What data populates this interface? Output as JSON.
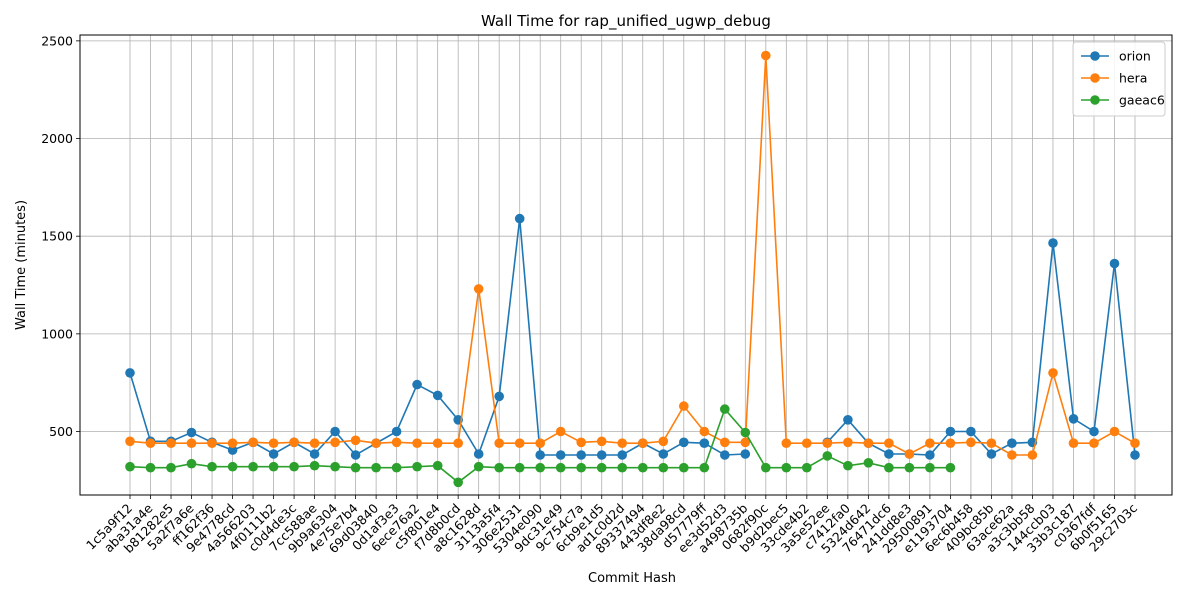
{
  "chart_data": {
    "type": "line",
    "title": "Wall Time for rap_unified_ugwp_debug",
    "xlabel": "Commit Hash",
    "ylabel": "Wall Time (minutes)",
    "ylim": [
      175,
      2530
    ],
    "yticks": [
      500,
      1000,
      1500,
      2000,
      2500
    ],
    "grid": true,
    "legend_position": "top-right",
    "categories": [
      "1c5a9f12",
      "aba31a4e",
      "b81282e5",
      "5a2f7a6e",
      "ff162f36",
      "9e4778cd",
      "4a566203",
      "4f0111b2",
      "c0d4de3c",
      "7cc588ae",
      "9b9a6304",
      "4e75e7b4",
      "69d03840",
      "0d1af3e3",
      "6ece76a2",
      "c5f801e4",
      "f7d8b0cd",
      "a8c1628d",
      "3113a5f4",
      "306e2531",
      "5304e090",
      "9dc31e49",
      "9c754c7a",
      "6cb9e1d5",
      "ad1c0d2d",
      "89337494",
      "443df8e2",
      "38da98cd",
      "d57779ff",
      "ee3d52d3",
      "a498735b",
      "0682f90c",
      "b9d2bec5",
      "33cde4b2",
      "3a5e52ee",
      "c7412fa0",
      "5324d642",
      "76471dc6",
      "241dd8e3",
      "29500891",
      "e1193704",
      "6ec6b458",
      "409bc85b",
      "63ace62a",
      "a3c3bb58",
      "144ccb03",
      "33b3c187",
      "c0367fdf",
      "6b0f5165",
      "29c2703c"
    ],
    "series": [
      {
        "name": "orion",
        "color": "#1f77b4",
        "values": [
          800,
          450,
          450,
          495,
          445,
          405,
          445,
          385,
          445,
          385,
          500,
          380,
          440,
          500,
          740,
          685,
          560,
          385,
          680,
          1590,
          380,
          380,
          380,
          380,
          380,
          440,
          385,
          445,
          440,
          380,
          385,
          null,
          null,
          null,
          445,
          560,
          440,
          385,
          385,
          380,
          500,
          500,
          385,
          440,
          445,
          1465,
          565,
          500,
          1360,
          380
        ]
      },
      {
        "name": "hera",
        "color": "#ff7f0e",
        "values": [
          450,
          440,
          440,
          440,
          440,
          440,
          445,
          440,
          445,
          440,
          445,
          455,
          440,
          445,
          440,
          440,
          440,
          1230,
          440,
          440,
          440,
          500,
          445,
          450,
          440,
          440,
          450,
          630,
          500,
          445,
          445,
          2425,
          440,
          440,
          440,
          445,
          440,
          440,
          385,
          440,
          440,
          445,
          440,
          380,
          380,
          800,
          440,
          440,
          500,
          440
        ]
      },
      {
        "name": "gaeac6",
        "color": "#2ca02c",
        "values": [
          320,
          315,
          315,
          335,
          320,
          320,
          320,
          320,
          320,
          325,
          320,
          315,
          315,
          315,
          320,
          325,
          240,
          320,
          315,
          315,
          315,
          315,
          315,
          315,
          315,
          315,
          315,
          315,
          315,
          615,
          495,
          315,
          315,
          315,
          375,
          325,
          340,
          315,
          315,
          315,
          315,
          null,
          null,
          null,
          null,
          null,
          null,
          null,
          null,
          null
        ]
      }
    ]
  }
}
